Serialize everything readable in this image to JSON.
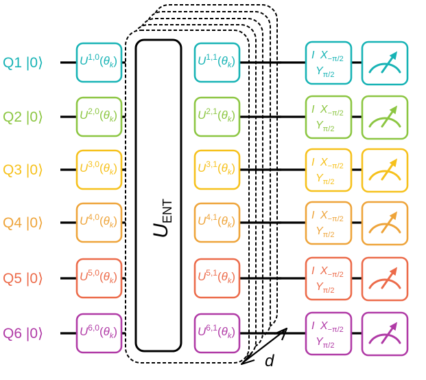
{
  "qubits": [
    {
      "name": "Q1",
      "state": "|0⟩",
      "color": "#17b3b5",
      "u_first_sup": "1,0",
      "u_second_sup": "1,1"
    },
    {
      "name": "Q2",
      "state": "|0⟩",
      "color": "#8cc642",
      "u_first_sup": "2,0",
      "u_second_sup": "2,1"
    },
    {
      "name": "Q3",
      "state": "|0⟩",
      "color": "#f6c11c",
      "u_first_sup": "3,0",
      "u_second_sup": "3,1"
    },
    {
      "name": "Q4",
      "state": "|0⟩",
      "color": "#eea43a",
      "u_first_sup": "4,0",
      "u_second_sup": "4,1"
    },
    {
      "name": "Q5",
      "state": "|0⟩",
      "color": "#ec6b4a",
      "u_first_sup": "5,0",
      "u_second_sup": "5,1"
    },
    {
      "name": "Q6",
      "state": "|0⟩",
      "color": "#b03aa6",
      "u_first_sup": "6,0",
      "u_second_sup": "6,1"
    }
  ],
  "gate": {
    "letter": "U",
    "arg_open": "(",
    "theta": "θ",
    "theta_sub": "k",
    "arg_close": ")"
  },
  "entangler": {
    "letter": "U",
    "sub": "ENT"
  },
  "repeat_label": "d",
  "measure_basis": {
    "identity": "I",
    "x_letter": "X",
    "x_sub": "−π/2",
    "y_letter": "Y",
    "y_sub": "π/2"
  },
  "meter_icon": "meter-icon"
}
